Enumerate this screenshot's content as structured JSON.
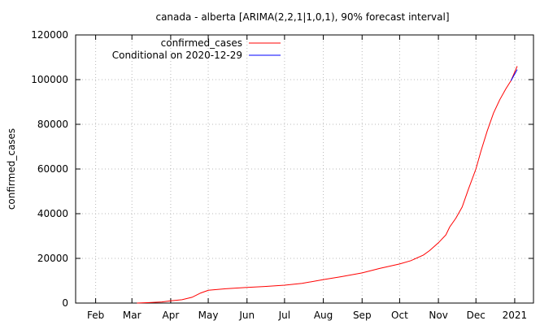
{
  "chart_data": {
    "type": "line",
    "title": "canada - alberta [ARIMA(2,2,1|1,0,1), 90% forecast interval]",
    "ylabel": "confirmed_cases",
    "xlabel": "",
    "ylim": [
      0,
      120000
    ],
    "yticks": [
      0,
      20000,
      40000,
      60000,
      80000,
      100000,
      120000
    ],
    "ytick_labels": [
      "0",
      "20000",
      "40000",
      "60000",
      "80000",
      "100000",
      "120000"
    ],
    "xlim": [
      "2020-01-16",
      "2021-01-16"
    ],
    "xticks": [
      "2020-02-01",
      "2020-03-01",
      "2020-04-01",
      "2020-05-01",
      "2020-06-01",
      "2020-07-01",
      "2020-08-01",
      "2020-09-01",
      "2020-10-01",
      "2020-11-01",
      "2020-12-01",
      "2021-01-01"
    ],
    "xtick_labels": [
      "Feb",
      "Mar",
      "Apr",
      "May",
      "Jun",
      "Jul",
      "Aug",
      "Sep",
      "Oct",
      "Nov",
      "Dec",
      "2021"
    ],
    "grid": true,
    "legend_position": "top-left",
    "series": [
      {
        "name": "confirmed_cases",
        "color": "#ff0000",
        "x": [
          "2020-03-05",
          "2020-03-15",
          "2020-03-25",
          "2020-04-01",
          "2020-04-10",
          "2020-04-18",
          "2020-04-25",
          "2020-05-01",
          "2020-05-15",
          "2020-06-01",
          "2020-06-15",
          "2020-07-01",
          "2020-07-15",
          "2020-08-01",
          "2020-08-15",
          "2020-09-01",
          "2020-09-15",
          "2020-10-01",
          "2020-10-10",
          "2020-10-20",
          "2020-10-25",
          "2020-11-01",
          "2020-11-07",
          "2020-11-10",
          "2020-11-15",
          "2020-11-20",
          "2020-11-25",
          "2020-12-01",
          "2020-12-05",
          "2020-12-10",
          "2020-12-15",
          "2020-12-20",
          "2020-12-25",
          "2020-12-29",
          "2021-01-03"
        ],
        "y": [
          0,
          200,
          500,
          1000,
          1500,
          2600,
          4500,
          5700,
          6400,
          7000,
          7400,
          8000,
          8800,
          10500,
          11800,
          13500,
          15500,
          17500,
          19000,
          21500,
          23500,
          27000,
          30500,
          34000,
          38000,
          43000,
          51000,
          60000,
          68000,
          77000,
          85000,
          91000,
          96000,
          99500,
          106000
        ]
      },
      {
        "name": "Conditional on 2020-12-29",
        "color": "#0000ff",
        "x": [
          "2020-12-29",
          "2021-01-03"
        ],
        "y": [
          99500,
          104500
        ]
      }
    ]
  }
}
